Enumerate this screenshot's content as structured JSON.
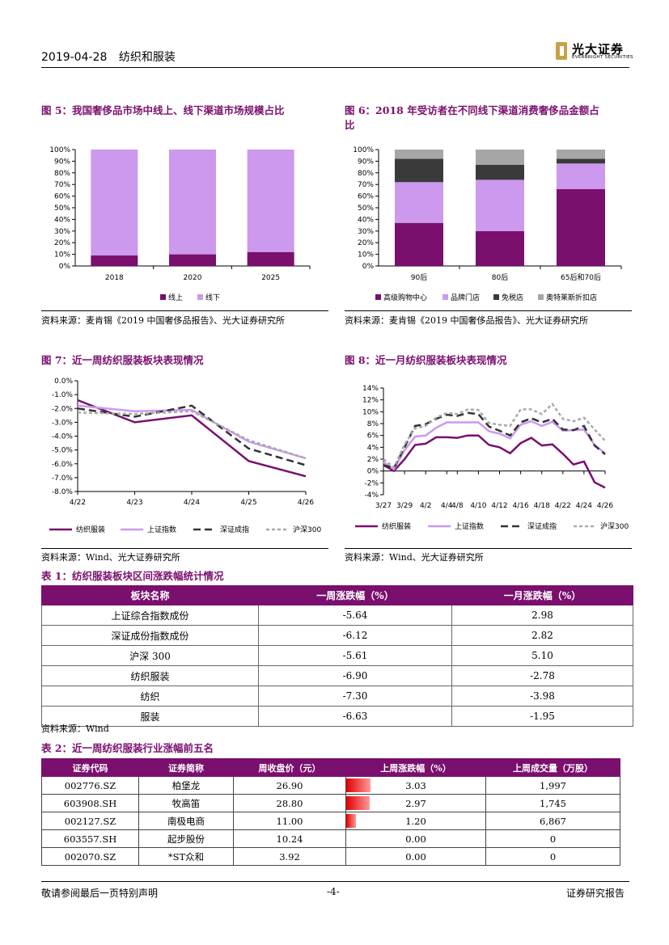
{
  "header": {
    "date": "2019-04-28",
    "sector": "纺织和服装",
    "logo_cn": "光大证券",
    "logo_en": "EVERBRIGHT SECURITIES"
  },
  "figures": {
    "fig5": {
      "title": "图 5：我国奢侈品市场中线上、线下渠道市场规模占比",
      "source": "资料来源：麦肯锡《2019 中国奢侈品报告》、光大证券研究所"
    },
    "fig6": {
      "title_line1": "图 6：2018 年受访者在不同线下渠道消费奢侈品金额占",
      "title_line2": "比",
      "source": "资料来源：麦肯锡《2019 中国奢侈品报告》、光大证券研究所"
    },
    "fig7": {
      "title": "图 7：近一周纺织服装板块表现情况",
      "source": "资料来源：Wind、光大证券研究所"
    },
    "fig8": {
      "title": "图 8：近一月纺织服装板块表现情况",
      "source": "资料来源：Wind、光大证券研究所"
    }
  },
  "chart_data": [
    {
      "id": "fig5",
      "type": "bar",
      "stacked": true,
      "categories": [
        "2018",
        "2020",
        "2025"
      ],
      "series": [
        {
          "name": "线上",
          "color": "#7a0f6e",
          "values": [
            9,
            10,
            12
          ]
        },
        {
          "name": "线下",
          "color": "#cc99ee",
          "values": [
            91,
            90,
            88
          ]
        }
      ],
      "ylim": [
        0,
        100
      ],
      "yticks": [
        "0%",
        "10%",
        "20%",
        "30%",
        "40%",
        "50%",
        "60%",
        "70%",
        "80%",
        "90%",
        "100%"
      ],
      "legend": "bottom"
    },
    {
      "id": "fig6",
      "type": "bar",
      "stacked": true,
      "categories": [
        "90后",
        "80后",
        "65后和70后"
      ],
      "series": [
        {
          "name": "高级购物中心",
          "color": "#7a0f6e",
          "values": [
            37,
            30,
            66
          ]
        },
        {
          "name": "品牌门店",
          "color": "#cc99ee",
          "values": [
            35,
            44,
            22
          ]
        },
        {
          "name": "免税店",
          "color": "#3a3a3a",
          "values": [
            20,
            13,
            4
          ]
        },
        {
          "name": "奥特莱斯折扣店",
          "color": "#a6a6a6",
          "values": [
            8,
            13,
            8
          ]
        }
      ],
      "ylim": [
        0,
        100
      ],
      "yticks": [
        "0%",
        "10%",
        "20%",
        "30%",
        "40%",
        "50%",
        "60%",
        "70%",
        "80%",
        "90%",
        "100%"
      ],
      "legend": "bottom"
    },
    {
      "id": "fig7",
      "type": "line",
      "x": [
        "4/22",
        "4/23",
        "4/24",
        "4/25",
        "4/26"
      ],
      "series": [
        {
          "name": "纺织服装",
          "color": "#7a0f6e",
          "style": "solid",
          "values": [
            -1.4,
            -3.0,
            -2.5,
            -5.8,
            -6.9
          ]
        },
        {
          "name": "上证指数",
          "color": "#cc99ee",
          "style": "solid",
          "values": [
            -1.8,
            -2.2,
            -2.1,
            -4.4,
            -5.6
          ]
        },
        {
          "name": "深证成指",
          "color": "#333333",
          "style": "dash",
          "values": [
            -2.0,
            -2.6,
            -1.8,
            -4.9,
            -6.1
          ]
        },
        {
          "name": "沪深300",
          "color": "#aaaaaa",
          "style": "dot",
          "values": [
            -2.3,
            -2.4,
            -2.2,
            -4.3,
            -5.6
          ]
        }
      ],
      "ylim": [
        -8,
        0
      ],
      "yticks": [
        "0.0%",
        "-1.0%",
        "-2.0%",
        "-3.0%",
        "-4.0%",
        "-5.0%",
        "-6.0%",
        "-7.0%",
        "-8.0%"
      ],
      "legend": "bottom"
    },
    {
      "id": "fig8",
      "type": "line",
      "x": [
        "3/27",
        "3/28",
        "3/29",
        "4/1",
        "4/2",
        "4/3",
        "4/4",
        "4/8",
        "4/9",
        "4/10",
        "4/11",
        "4/12",
        "4/15",
        "4/16",
        "4/17",
        "4/18",
        "4/19",
        "4/22",
        "4/23",
        "4/24",
        "4/25",
        "4/26"
      ],
      "xticks": [
        "3/27",
        "3/29",
        "4/2",
        "4/4",
        "4/8",
        "4/10",
        "4/12",
        "4/16",
        "4/18",
        "4/22",
        "4/24",
        "4/26"
      ],
      "series": [
        {
          "name": "纺织服装",
          "color": "#7a0f6e",
          "style": "solid",
          "values": [
            1.0,
            0.0,
            2.0,
            4.4,
            4.6,
            5.7,
            5.7,
            5.6,
            6.0,
            6.0,
            4.4,
            4.0,
            3.0,
            4.7,
            5.6,
            4.3,
            4.5,
            2.9,
            1.1,
            1.6,
            -1.9,
            -2.8
          ]
        },
        {
          "name": "上证指数",
          "color": "#cc99ee",
          "style": "solid",
          "values": [
            1.5,
            0.3,
            3.5,
            5.8,
            6.0,
            7.3,
            8.2,
            8.2,
            8.2,
            8.2,
            6.7,
            6.3,
            5.5,
            7.8,
            8.4,
            7.6,
            8.3,
            6.8,
            6.9,
            7.0,
            4.4,
            2.98
          ]
        },
        {
          "name": "深证成指",
          "color": "#333333",
          "style": "dash",
          "values": [
            1.0,
            0.5,
            4.0,
            7.6,
            7.9,
            8.8,
            9.5,
            9.3,
            9.8,
            9.6,
            7.5,
            6.8,
            6.0,
            8.2,
            8.9,
            8.2,
            8.8,
            7.0,
            6.9,
            7.6,
            4.3,
            2.82
          ]
        },
        {
          "name": "沪深300",
          "color": "#aaaaaa",
          "style": "dot",
          "values": [
            2.0,
            0.6,
            4.5,
            7.2,
            7.6,
            9.0,
            9.8,
            9.6,
            10.4,
            10.3,
            8.1,
            7.8,
            7.6,
            10.4,
            10.4,
            9.6,
            11.3,
            8.8,
            8.4,
            9.0,
            7.0,
            5.1
          ]
        }
      ],
      "ylim": [
        -4,
        14
      ],
      "yticks": [
        "14%",
        "12%",
        "10%",
        "8%",
        "6%",
        "4%",
        "2%",
        "0%",
        "-2%",
        "-4%"
      ],
      "legend": "bottom"
    }
  ],
  "table1": {
    "title": "表 1：纺织服装板块区间涨跌幅统计情况",
    "headers": [
      "板块名称",
      "一周涨跌幅（%）",
      "一月涨跌幅（%）"
    ],
    "rows": [
      [
        "上证综合指数成份",
        "-5.64",
        "2.98"
      ],
      [
        "深证成份指数成份",
        "-6.12",
        "2.82"
      ],
      [
        "沪深 300",
        "-5.61",
        "5.10"
      ],
      [
        "纺织服装",
        "-6.90",
        "-2.78"
      ],
      [
        "纺织",
        "-7.30",
        "-3.98"
      ],
      [
        "服装",
        "-6.63",
        "-1.95"
      ]
    ],
    "source": "资料来源：Wind"
  },
  "table2": {
    "title": "表 2：近一周纺织服装行业涨幅前五名",
    "headers": [
      "证券代码",
      "证券简称",
      "周收盘价（元）",
      "上周涨跌幅（%）",
      "上周成交量（万股）"
    ],
    "rows": [
      {
        "code": "002776.SZ",
        "name": "柏堡龙",
        "close": "26.90",
        "change": "3.03",
        "change_fraction": 1.0,
        "volume": "1,997"
      },
      {
        "code": "603908.SH",
        "name": "牧高笛",
        "close": "28.80",
        "change": "2.97",
        "change_fraction": 0.98,
        "volume": "1,745"
      },
      {
        "code": "002127.SZ",
        "name": "南极电商",
        "close": "11.00",
        "change": "1.20",
        "change_fraction": 0.4,
        "volume": "6,867"
      },
      {
        "code": "603557.SH",
        "name": "起步股份",
        "close": "10.24",
        "change": "0.00",
        "change_fraction": 0.0,
        "volume": "0"
      },
      {
        "code": "002070.SZ",
        "name": "*ST众和",
        "close": "3.92",
        "change": "0.00",
        "change_fraction": 0.0,
        "volume": "0"
      }
    ]
  },
  "footer": {
    "disclaimer": "敬请参阅最后一页特别声明",
    "page": "-4-",
    "report_type": "证券研究报告"
  }
}
